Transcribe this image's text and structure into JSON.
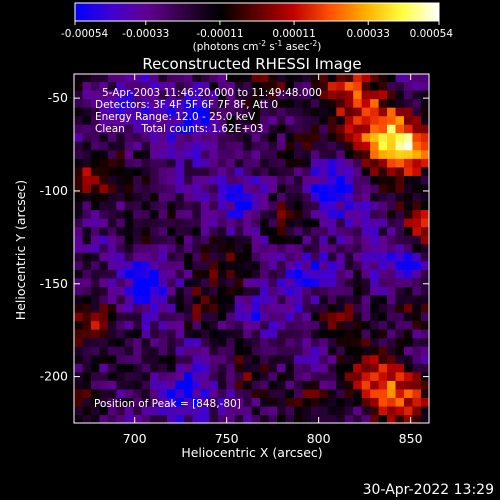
{
  "colorbar": {
    "ticks": [
      "-0.00054",
      "-0.00033",
      "-0.00011",
      "0.00011",
      "0.00033",
      "0.00054"
    ],
    "tick_values": [
      -0.00054,
      -0.00033,
      -0.00011,
      0.00011,
      0.00033,
      0.00054
    ],
    "units_prefix": "(photons cm",
    "units_sup1": "-2",
    "units_mid1": " s",
    "units_sup2": "-1",
    "units_mid2": " asec",
    "units_sup3": "-2",
    "units_suffix": ")",
    "stops": [
      "#0000ff",
      "#4000d0",
      "#600090",
      "#300040",
      "#000000",
      "#600000",
      "#c00000",
      "#ff5000",
      "#ffb000",
      "#ffff40",
      "#ffffff"
    ]
  },
  "chart_data": {
    "type": "heatmap",
    "title": "Reconstructed RHESSI Image",
    "xlabel": "Heliocentric X (arcsec)",
    "ylabel": "Heliocentric Y (arcsec)",
    "xlim": [
      667,
      860
    ],
    "ylim": [
      -225,
      -37
    ],
    "x_ticks": [
      700,
      750,
      800,
      850
    ],
    "y_ticks": [
      -50,
      -100,
      -150,
      -200
    ],
    "annotations": [
      "5-Apr-2003 11:46:20.000 to 11:49:48.000",
      "Detectors: 3F 4F 5F 6F 7F 8F, Att 0",
      "Energy Range: 12.0 - 25.0 keV",
      "Clean     Total counts: 1.62E+03"
    ],
    "peak_label": "Position of Peak = [848,-80]",
    "peak": [
      848,
      -80
    ],
    "value_range": [
      -0.00054,
      0.00054
    ],
    "grid": false
  },
  "footer": {
    "timestamp": "30-Apr-2022 13:29"
  }
}
